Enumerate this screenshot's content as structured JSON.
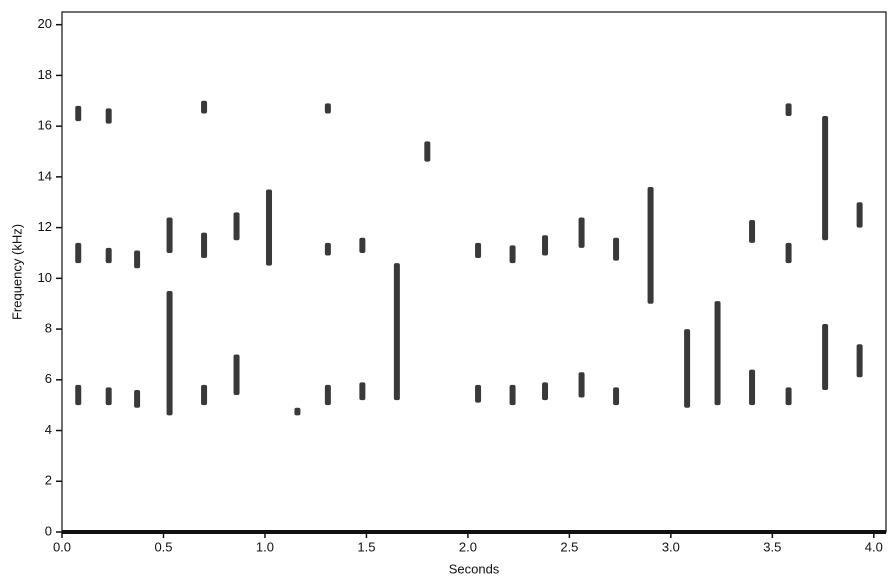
{
  "chart_data": {
    "type": "spectrogram",
    "xlabel": "Seconds",
    "ylabel": "Frequency (kHz)",
    "xlim": [
      0,
      4.06
    ],
    "ylim": [
      0,
      20.5
    ],
    "xticks": [
      {
        "value": 0,
        "label": "0.0"
      },
      0.5,
      {
        "value": 1,
        "label": "1.0"
      },
      1.5,
      {
        "value": 2,
        "label": "2.0"
      },
      2.5,
      {
        "value": 3,
        "label": "3.0"
      },
      3.5,
      {
        "value": 4,
        "label": "4.0"
      }
    ],
    "yticks": [
      0,
      2,
      4,
      6,
      8,
      10,
      12,
      14,
      16,
      18,
      20
    ],
    "color": "#161616",
    "x": [
      0.08,
      0.08,
      0.08,
      0.23,
      0.23,
      0.23,
      0.37,
      0.37,
      0.53,
      0.53,
      0.7,
      0.7,
      0.7,
      0.86,
      0.86,
      1.02,
      1.16,
      1.31,
      1.31,
      1.31,
      1.48,
      1.48,
      1.65,
      1.8,
      2.05,
      2.05,
      2.22,
      2.22,
      2.38,
      2.38,
      2.56,
      2.56,
      2.73,
      2.73,
      2.9,
      3.08,
      3.23,
      3.4,
      3.4,
      3.58,
      3.58,
      3.58,
      3.76,
      3.76,
      3.93,
      3.93
    ],
    "low": [
      5.0,
      10.6,
      16.2,
      5.0,
      10.6,
      16.1,
      4.9,
      10.4,
      4.6,
      11.0,
      5.0,
      10.8,
      16.5,
      5.4,
      11.5,
      10.5,
      4.6,
      5.0,
      10.9,
      16.5,
      5.2,
      11.0,
      5.2,
      14.6,
      5.1,
      10.8,
      5.0,
      10.6,
      5.2,
      10.9,
      5.3,
      11.2,
      5.0,
      10.7,
      9.0,
      4.9,
      5.0,
      5.0,
      11.4,
      5.0,
      10.6,
      16.4,
      5.6,
      11.5,
      6.1,
      12.0
    ],
    "high": [
      5.8,
      11.4,
      16.8,
      5.7,
      11.2,
      16.7,
      5.6,
      11.1,
      9.5,
      12.4,
      5.8,
      11.8,
      17.0,
      7.0,
      12.6,
      13.5,
      4.9,
      5.8,
      11.4,
      16.9,
      5.9,
      11.6,
      10.6,
      15.4,
      5.8,
      11.4,
      5.8,
      11.3,
      5.9,
      11.7,
      6.3,
      12.4,
      5.7,
      11.6,
      13.6,
      8.0,
      9.1,
      6.4,
      12.3,
      5.7,
      11.4,
      16.9,
      8.2,
      16.4,
      7.4,
      13.0
    ]
  }
}
